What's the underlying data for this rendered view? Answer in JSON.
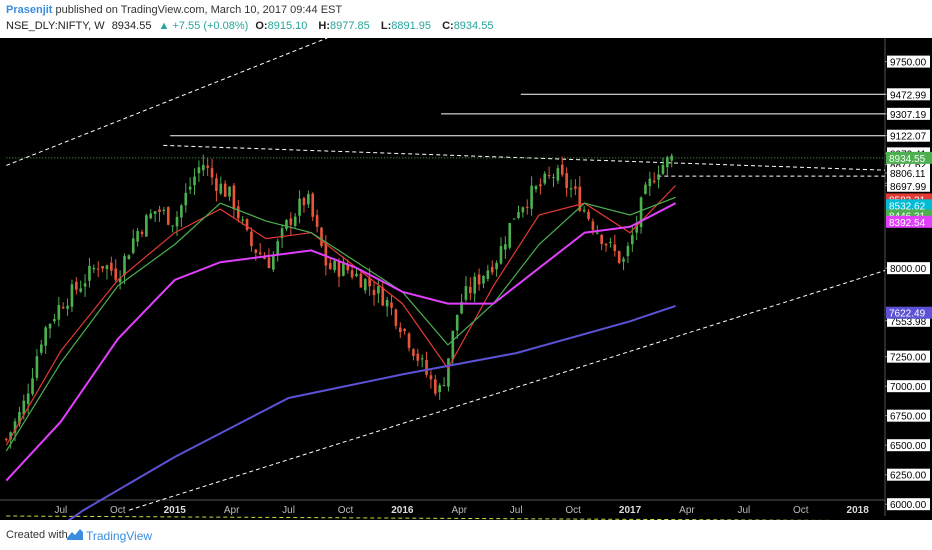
{
  "header": {
    "author": "Prasenjit",
    "published": "published on TradingView.com, March 10, 2017 09:44 EST",
    "symbol": "NSE_DLY:NIFTY, W",
    "price": "8934.55",
    "change": "▲ +7.55 (+0.08%)",
    "open_label": "O:",
    "open": "8915.10",
    "high_label": "H:",
    "high": "8977.85",
    "low_label": "L:",
    "low": "8891.95",
    "close_label": "C:",
    "close": "8934.55"
  },
  "footer": {
    "created_with": "Created with",
    "brand": "TradingView"
  },
  "colors": {
    "background": "#000000",
    "up_candle": "#4caf50",
    "down_candle": "#e8563a",
    "ma_fast": "#e53935",
    "ma_mid": "#4caf50",
    "ma_slow": "#e040fb",
    "ma_long": "#5c52d6",
    "price_tag": "#4caf50"
  },
  "chart_data": {
    "type": "candlestick",
    "ylim": [
      5900,
      9950
    ],
    "y_ticks": [
      {
        "value": 9750,
        "label": "9750.00"
      },
      {
        "value": 9472.99,
        "label": "9472.99"
      },
      {
        "value": 9307.19,
        "label": "9307.19"
      },
      {
        "value": 9122.07,
        "label": "9122.07"
      },
      {
        "value": 8972.41,
        "label": "8972.41"
      },
      {
        "value": 8877.62,
        "label": "8877.62"
      },
      {
        "value": 8806.11,
        "label": "8806.11"
      },
      {
        "value": 8720.07,
        "label": "8720.07"
      },
      {
        "value": 8697.99,
        "label": "8697.99"
      },
      {
        "value": 8000,
        "label": "8000.00"
      },
      {
        "value": 7553.98,
        "label": "7553.98"
      },
      {
        "value": 7250,
        "label": "7250.00"
      },
      {
        "value": 7000,
        "label": "7000.00"
      },
      {
        "value": 6750,
        "label": "6750.00"
      },
      {
        "value": 6500,
        "label": "6500.00"
      },
      {
        "value": 6250,
        "label": "6250.00"
      },
      {
        "value": 6000,
        "label": "6000.00"
      }
    ],
    "price_tags": [
      {
        "value": 8934.55,
        "label": "8934.55",
        "color": "#4caf50"
      },
      {
        "value": 8582.31,
        "label": "8582.31",
        "color": "#e53935"
      },
      {
        "value": 8532.62,
        "label": "8532.62",
        "color": "#00bcd4"
      },
      {
        "value": 8446.31,
        "label": "8446.31",
        "color": "#4caf50"
      },
      {
        "value": 8392.54,
        "label": "8392.54",
        "color": "#e040fb"
      },
      {
        "value": 7622.49,
        "label": "7622.49",
        "color": "#5c52d6"
      }
    ],
    "x_ticks": [
      {
        "label": "Jul",
        "t": 2014.5
      },
      {
        "label": "Oct",
        "t": 2014.75
      },
      {
        "label": "2015",
        "t": 2015.0
      },
      {
        "label": "Apr",
        "t": 2015.25
      },
      {
        "label": "Jul",
        "t": 2015.5
      },
      {
        "label": "Oct",
        "t": 2015.75
      },
      {
        "label": "2016",
        "t": 2016.0
      },
      {
        "label": "Apr",
        "t": 2016.25
      },
      {
        "label": "Jul",
        "t": 2016.5
      },
      {
        "label": "Oct",
        "t": 2016.75
      },
      {
        "label": "2017",
        "t": 2017.0
      },
      {
        "label": "Apr",
        "t": 2017.25
      },
      {
        "label": "Jul",
        "t": 2017.5
      },
      {
        "label": "Oct",
        "t": 2017.75
      },
      {
        "label": "2018",
        "t": 2018.0
      }
    ],
    "xlim": [
      2014.25,
      2018.12
    ],
    "close_path": [
      [
        2014.26,
        6550
      ],
      [
        2014.33,
        6800
      ],
      [
        2014.42,
        7450
      ],
      [
        2014.5,
        7700
      ],
      [
        2014.58,
        7850
      ],
      [
        2014.67,
        8050
      ],
      [
        2014.75,
        7950
      ],
      [
        2014.83,
        8300
      ],
      [
        2014.92,
        8500
      ],
      [
        2015.0,
        8400
      ],
      [
        2015.08,
        8750
      ],
      [
        2015.12,
        8900
      ],
      [
        2015.17,
        8750
      ],
      [
        2015.25,
        8600
      ],
      [
        2015.33,
        8200
      ],
      [
        2015.42,
        8050
      ],
      [
        2015.5,
        8400
      ],
      [
        2015.58,
        8600
      ],
      [
        2015.67,
        8000
      ],
      [
        2015.75,
        8000
      ],
      [
        2015.83,
        7900
      ],
      [
        2015.92,
        7750
      ],
      [
        2016.0,
        7500
      ],
      [
        2016.08,
        7200
      ],
      [
        2016.12,
        7050
      ],
      [
        2016.17,
        6950
      ],
      [
        2016.25,
        7700
      ],
      [
        2016.33,
        7900
      ],
      [
        2016.42,
        8100
      ],
      [
        2016.5,
        8500
      ],
      [
        2016.58,
        8650
      ],
      [
        2016.67,
        8800
      ],
      [
        2016.75,
        8650
      ],
      [
        2016.83,
        8400
      ],
      [
        2016.92,
        8150
      ],
      [
        2016.97,
        8050
      ],
      [
        2017.0,
        8200
      ],
      [
        2017.06,
        8600
      ],
      [
        2017.12,
        8850
      ],
      [
        2017.19,
        8934.55
      ]
    ],
    "trendlines": [
      {
        "name": "upper-channel",
        "style": "dashed",
        "points": [
          [
            2014.26,
            8870
          ],
          [
            2015.67,
            9950
          ]
        ]
      },
      {
        "name": "lower-channel",
        "style": "dashed",
        "points": [
          [
            2014.8,
            5950
          ],
          [
            2018.12,
            7980
          ]
        ]
      },
      {
        "name": "resistance",
        "style": "dashed",
        "points": [
          [
            2014.95,
            9040
          ],
          [
            2018.12,
            8830
          ]
        ]
      },
      {
        "name": "horizontal-support",
        "style": "dashed",
        "points": [
          [
            2014.26,
            5900
          ],
          [
            2018.12,
            5860
          ]
        ]
      }
    ],
    "levels": [
      {
        "value": 9472.99,
        "from": 2016.52
      },
      {
        "value": 9307.19,
        "from": 2016.17
      },
      {
        "value": 9122.07,
        "from": 2014.98
      },
      {
        "value": 8934.55,
        "from": 2014.26,
        "style": "dotted"
      },
      {
        "value": 8780,
        "from": 2017.12,
        "style": "dashed"
      }
    ],
    "moving_averages": [
      {
        "name": "ma_fast",
        "points": [
          [
            2014.26,
            6500
          ],
          [
            2014.5,
            7300
          ],
          [
            2014.75,
            7900
          ],
          [
            2015.0,
            8300
          ],
          [
            2015.2,
            8500
          ],
          [
            2015.4,
            8250
          ],
          [
            2015.6,
            8300
          ],
          [
            2015.8,
            8000
          ],
          [
            2016.0,
            7700
          ],
          [
            2016.2,
            7150
          ],
          [
            2016.4,
            7850
          ],
          [
            2016.6,
            8450
          ],
          [
            2016.8,
            8550
          ],
          [
            2017.0,
            8300
          ],
          [
            2017.2,
            8700
          ]
        ]
      },
      {
        "name": "ma_mid",
        "points": [
          [
            2014.26,
            6450
          ],
          [
            2014.5,
            7200
          ],
          [
            2014.75,
            7850
          ],
          [
            2015.0,
            8200
          ],
          [
            2015.2,
            8550
          ],
          [
            2015.4,
            8400
          ],
          [
            2015.6,
            8300
          ],
          [
            2015.8,
            8050
          ],
          [
            2016.0,
            7800
          ],
          [
            2016.2,
            7350
          ],
          [
            2016.4,
            7700
          ],
          [
            2016.6,
            8200
          ],
          [
            2016.8,
            8550
          ],
          [
            2017.0,
            8450
          ],
          [
            2017.2,
            8600
          ]
        ]
      },
      {
        "name": "ma_slow",
        "points": [
          [
            2014.26,
            6200
          ],
          [
            2014.5,
            6700
          ],
          [
            2014.75,
            7400
          ],
          [
            2015.0,
            7900
          ],
          [
            2015.2,
            8050
          ],
          [
            2015.4,
            8100
          ],
          [
            2015.6,
            8150
          ],
          [
            2015.8,
            8000
          ],
          [
            2016.0,
            7800
          ],
          [
            2016.2,
            7700
          ],
          [
            2016.4,
            7700
          ],
          [
            2016.6,
            8000
          ],
          [
            2016.8,
            8300
          ],
          [
            2017.0,
            8350
          ],
          [
            2017.2,
            8550
          ]
        ]
      },
      {
        "name": "ma_long",
        "points": [
          [
            2014.26,
            5500
          ],
          [
            2014.6,
            5950
          ],
          [
            2015.0,
            6400
          ],
          [
            2015.5,
            6900
          ],
          [
            2016.0,
            7100
          ],
          [
            2016.5,
            7280
          ],
          [
            2017.0,
            7550
          ],
          [
            2017.2,
            7680
          ]
        ]
      }
    ]
  }
}
